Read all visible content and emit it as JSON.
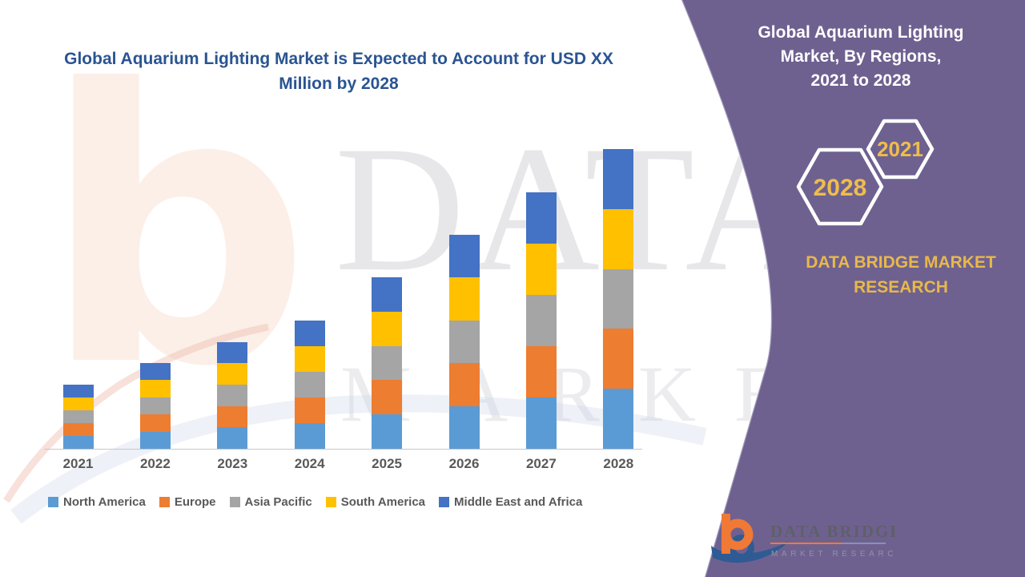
{
  "chart": {
    "title_lines": [
      "Global Aquarium Lighting Market is Expected to Account for",
      "USD XX Million by 2028"
    ],
    "title_color": "#2a5492",
    "axis_color": "#c8c8c8",
    "label_color": "#595959"
  },
  "chart_data": {
    "type": "bar",
    "stacked": true,
    "title": "Global Aquarium Lighting Market is Expected to Account for USD XX Million by 2028",
    "xlabel": "",
    "ylabel": "",
    "units": "USD Million (values shown as XX placeholders; heights are relative index, 2028 total = 28)",
    "categories": [
      "2021",
      "2022",
      "2023",
      "2024",
      "2025",
      "2026",
      "2027",
      "2028"
    ],
    "series": [
      {
        "name": "North America",
        "color": "#5B9BD5",
        "values": [
          1.2,
          1.6,
          2.0,
          2.4,
          3.2,
          4.0,
          4.8,
          5.6
        ]
      },
      {
        "name": "Europe",
        "color": "#ED7D31",
        "values": [
          1.2,
          1.6,
          2.0,
          2.4,
          3.2,
          4.0,
          4.8,
          5.6
        ]
      },
      {
        "name": "Asia Pacific",
        "color": "#A5A5A5",
        "values": [
          1.2,
          1.6,
          2.0,
          2.4,
          3.2,
          4.0,
          4.8,
          5.6
        ]
      },
      {
        "name": "South America",
        "color": "#FFC000",
        "values": [
          1.2,
          1.6,
          2.0,
          2.4,
          3.2,
          4.0,
          4.8,
          5.6
        ]
      },
      {
        "name": "Middle East and Africa",
        "color": "#4472C4",
        "values": [
          1.2,
          1.6,
          2.0,
          2.4,
          3.2,
          4.0,
          4.8,
          5.6
        ]
      }
    ],
    "totals": [
      6,
      8,
      10,
      12,
      16,
      20,
      24,
      28
    ],
    "ylim": [
      0,
      30
    ],
    "grid": false,
    "legend_position": "bottom"
  },
  "panel": {
    "bg": "#695B8C",
    "gold": "#E8B84B",
    "title_lines": [
      "Global Aquarium Lighting",
      "Market, By Regions,",
      "2021 to 2028"
    ],
    "hexagons": [
      {
        "label": "2021"
      },
      {
        "label": "2028"
      }
    ],
    "brand_text": "DATA BRIDGE MARKET RESEARCH"
  },
  "watermark": {
    "letter": "b",
    "big_text": "DATA BRIDGE",
    "sub_text": "MARKET RESEARCH"
  },
  "logo": {
    "name": "DATA BRIDGE",
    "tagline": "MARKET RESEARCH"
  }
}
